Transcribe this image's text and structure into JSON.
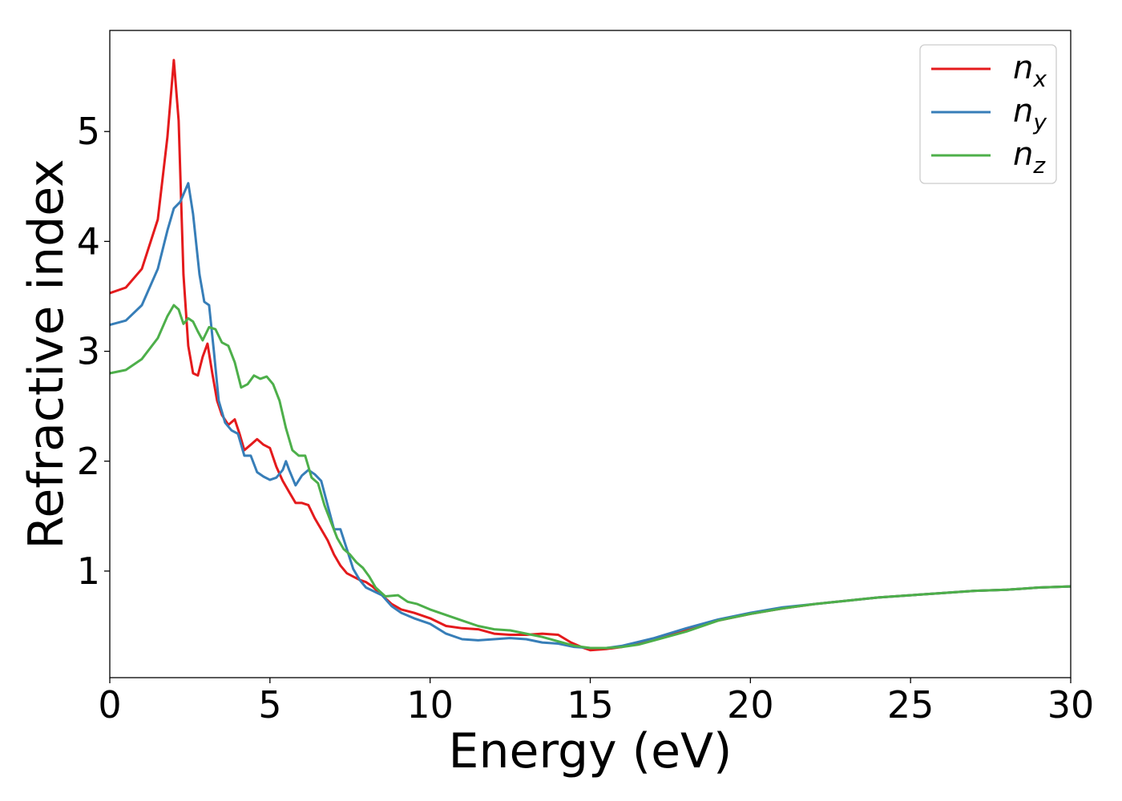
{
  "chart_data": {
    "type": "line",
    "xlabel": "Energy (eV)",
    "ylabel": "Refractive index",
    "xlim": [
      0,
      30
    ],
    "ylim": [
      0.03,
      5.92
    ],
    "xticks": [
      0,
      5,
      10,
      15,
      20,
      25,
      30
    ],
    "yticks": [
      1,
      2,
      3,
      4,
      5
    ],
    "grid": false,
    "legend": "top-right",
    "series": [
      {
        "name": "n_x",
        "label_base": "n",
        "label_sub": "x",
        "color": "#e41a1c",
        "points": [
          [
            0,
            3.53
          ],
          [
            0.5,
            3.58
          ],
          [
            1,
            3.75
          ],
          [
            1.5,
            4.2
          ],
          [
            1.8,
            4.95
          ],
          [
            2.0,
            5.65
          ],
          [
            2.15,
            5.1
          ],
          [
            2.3,
            3.7
          ],
          [
            2.45,
            3.05
          ],
          [
            2.6,
            2.8
          ],
          [
            2.75,
            2.78
          ],
          [
            2.9,
            2.95
          ],
          [
            3.05,
            3.07
          ],
          [
            3.2,
            2.8
          ],
          [
            3.35,
            2.55
          ],
          [
            3.5,
            2.42
          ],
          [
            3.7,
            2.33
          ],
          [
            3.9,
            2.38
          ],
          [
            4.05,
            2.25
          ],
          [
            4.2,
            2.1
          ],
          [
            4.4,
            2.15
          ],
          [
            4.6,
            2.2
          ],
          [
            4.8,
            2.15
          ],
          [
            5.0,
            2.12
          ],
          [
            5.2,
            1.95
          ],
          [
            5.4,
            1.82
          ],
          [
            5.6,
            1.72
          ],
          [
            5.8,
            1.62
          ],
          [
            6.0,
            1.62
          ],
          [
            6.2,
            1.6
          ],
          [
            6.4,
            1.48
          ],
          [
            6.6,
            1.38
          ],
          [
            6.8,
            1.28
          ],
          [
            7.0,
            1.15
          ],
          [
            7.2,
            1.05
          ],
          [
            7.4,
            0.98
          ],
          [
            7.6,
            0.95
          ],
          [
            7.8,
            0.92
          ],
          [
            8.0,
            0.9
          ],
          [
            8.2,
            0.86
          ],
          [
            8.5,
            0.78
          ],
          [
            8.8,
            0.7
          ],
          [
            9.1,
            0.65
          ],
          [
            9.5,
            0.62
          ],
          [
            10.0,
            0.57
          ],
          [
            10.5,
            0.5
          ],
          [
            11.0,
            0.48
          ],
          [
            11.5,
            0.47
          ],
          [
            12.0,
            0.43
          ],
          [
            12.5,
            0.42
          ],
          [
            13.0,
            0.42
          ],
          [
            13.5,
            0.43
          ],
          [
            14.0,
            0.42
          ],
          [
            14.4,
            0.35
          ],
          [
            14.8,
            0.3
          ],
          [
            15.0,
            0.28
          ],
          [
            15.5,
            0.29
          ],
          [
            16.0,
            0.31
          ],
          [
            17.0,
            0.38
          ],
          [
            18.0,
            0.47
          ],
          [
            19.0,
            0.55
          ],
          [
            20.0,
            0.61
          ],
          [
            21.0,
            0.66
          ],
          [
            22.0,
            0.7
          ],
          [
            23.0,
            0.73
          ],
          [
            24.0,
            0.76
          ],
          [
            25.0,
            0.78
          ],
          [
            26.0,
            0.8
          ],
          [
            27.0,
            0.82
          ],
          [
            28.0,
            0.83
          ],
          [
            29.0,
            0.85
          ],
          [
            30.0,
            0.86
          ]
        ]
      },
      {
        "name": "n_y",
        "label_base": "n",
        "label_sub": "y",
        "color": "#377eb8",
        "points": [
          [
            0,
            3.24
          ],
          [
            0.5,
            3.28
          ],
          [
            1,
            3.42
          ],
          [
            1.5,
            3.75
          ],
          [
            1.8,
            4.1
          ],
          [
            2.0,
            4.3
          ],
          [
            2.2,
            4.36
          ],
          [
            2.45,
            4.53
          ],
          [
            2.6,
            4.25
          ],
          [
            2.8,
            3.7
          ],
          [
            2.95,
            3.45
          ],
          [
            3.1,
            3.42
          ],
          [
            3.25,
            3.0
          ],
          [
            3.4,
            2.55
          ],
          [
            3.6,
            2.35
          ],
          [
            3.8,
            2.28
          ],
          [
            4.0,
            2.25
          ],
          [
            4.2,
            2.05
          ],
          [
            4.4,
            2.05
          ],
          [
            4.6,
            1.9
          ],
          [
            4.8,
            1.86
          ],
          [
            5.0,
            1.83
          ],
          [
            5.2,
            1.85
          ],
          [
            5.4,
            1.92
          ],
          [
            5.5,
            2.0
          ],
          [
            5.6,
            1.92
          ],
          [
            5.8,
            1.78
          ],
          [
            6.0,
            1.87
          ],
          [
            6.2,
            1.92
          ],
          [
            6.4,
            1.88
          ],
          [
            6.6,
            1.82
          ],
          [
            6.8,
            1.6
          ],
          [
            7.0,
            1.38
          ],
          [
            7.2,
            1.38
          ],
          [
            7.4,
            1.2
          ],
          [
            7.6,
            1.02
          ],
          [
            7.8,
            0.92
          ],
          [
            8.0,
            0.85
          ],
          [
            8.5,
            0.78
          ],
          [
            8.8,
            0.68
          ],
          [
            9.1,
            0.62
          ],
          [
            9.5,
            0.57
          ],
          [
            10.0,
            0.52
          ],
          [
            10.5,
            0.43
          ],
          [
            11.0,
            0.38
          ],
          [
            11.5,
            0.37
          ],
          [
            12.0,
            0.38
          ],
          [
            12.5,
            0.39
          ],
          [
            13.0,
            0.38
          ],
          [
            13.5,
            0.35
          ],
          [
            14.0,
            0.34
          ],
          [
            14.5,
            0.31
          ],
          [
            15.0,
            0.3
          ],
          [
            15.5,
            0.3
          ],
          [
            16.0,
            0.32
          ],
          [
            17.0,
            0.39
          ],
          [
            18.0,
            0.48
          ],
          [
            19.0,
            0.56
          ],
          [
            20.0,
            0.62
          ],
          [
            21.0,
            0.67
          ],
          [
            22.0,
            0.7
          ],
          [
            23.0,
            0.73
          ],
          [
            24.0,
            0.76
          ],
          [
            25.0,
            0.78
          ],
          [
            26.0,
            0.8
          ],
          [
            27.0,
            0.82
          ],
          [
            28.0,
            0.83
          ],
          [
            29.0,
            0.85
          ],
          [
            30.0,
            0.86
          ]
        ]
      },
      {
        "name": "n_z",
        "label_base": "n",
        "label_sub": "z",
        "color": "#4daf4a",
        "points": [
          [
            0,
            2.8
          ],
          [
            0.5,
            2.83
          ],
          [
            1,
            2.93
          ],
          [
            1.5,
            3.12
          ],
          [
            1.8,
            3.32
          ],
          [
            2.0,
            3.42
          ],
          [
            2.15,
            3.38
          ],
          [
            2.3,
            3.25
          ],
          [
            2.45,
            3.3
          ],
          [
            2.6,
            3.27
          ],
          [
            2.75,
            3.18
          ],
          [
            2.9,
            3.1
          ],
          [
            3.1,
            3.22
          ],
          [
            3.3,
            3.2
          ],
          [
            3.5,
            3.08
          ],
          [
            3.7,
            3.05
          ],
          [
            3.9,
            2.9
          ],
          [
            4.1,
            2.67
          ],
          [
            4.3,
            2.7
          ],
          [
            4.5,
            2.78
          ],
          [
            4.7,
            2.75
          ],
          [
            4.9,
            2.77
          ],
          [
            5.1,
            2.7
          ],
          [
            5.3,
            2.55
          ],
          [
            5.5,
            2.3
          ],
          [
            5.7,
            2.1
          ],
          [
            5.9,
            2.05
          ],
          [
            6.1,
            2.05
          ],
          [
            6.3,
            1.85
          ],
          [
            6.5,
            1.8
          ],
          [
            6.7,
            1.6
          ],
          [
            6.9,
            1.45
          ],
          [
            7.1,
            1.3
          ],
          [
            7.3,
            1.2
          ],
          [
            7.5,
            1.15
          ],
          [
            7.7,
            1.08
          ],
          [
            7.9,
            1.03
          ],
          [
            8.1,
            0.95
          ],
          [
            8.3,
            0.85
          ],
          [
            8.6,
            0.77
          ],
          [
            9.0,
            0.78
          ],
          [
            9.3,
            0.72
          ],
          [
            9.6,
            0.7
          ],
          [
            10.0,
            0.65
          ],
          [
            10.5,
            0.6
          ],
          [
            11.0,
            0.55
          ],
          [
            11.5,
            0.5
          ],
          [
            12.0,
            0.47
          ],
          [
            12.5,
            0.46
          ],
          [
            13.0,
            0.43
          ],
          [
            13.5,
            0.4
          ],
          [
            14.0,
            0.36
          ],
          [
            14.5,
            0.32
          ],
          [
            15.0,
            0.3
          ],
          [
            15.5,
            0.3
          ],
          [
            16.0,
            0.31
          ],
          [
            16.5,
            0.33
          ],
          [
            17.0,
            0.37
          ],
          [
            18.0,
            0.45
          ],
          [
            19.0,
            0.55
          ],
          [
            20.0,
            0.61
          ],
          [
            21.0,
            0.66
          ],
          [
            22.0,
            0.7
          ],
          [
            23.0,
            0.73
          ],
          [
            24.0,
            0.76
          ],
          [
            25.0,
            0.78
          ],
          [
            26.0,
            0.8
          ],
          [
            27.0,
            0.82
          ],
          [
            28.0,
            0.83
          ],
          [
            29.0,
            0.85
          ],
          [
            30.0,
            0.86
          ]
        ]
      }
    ]
  }
}
